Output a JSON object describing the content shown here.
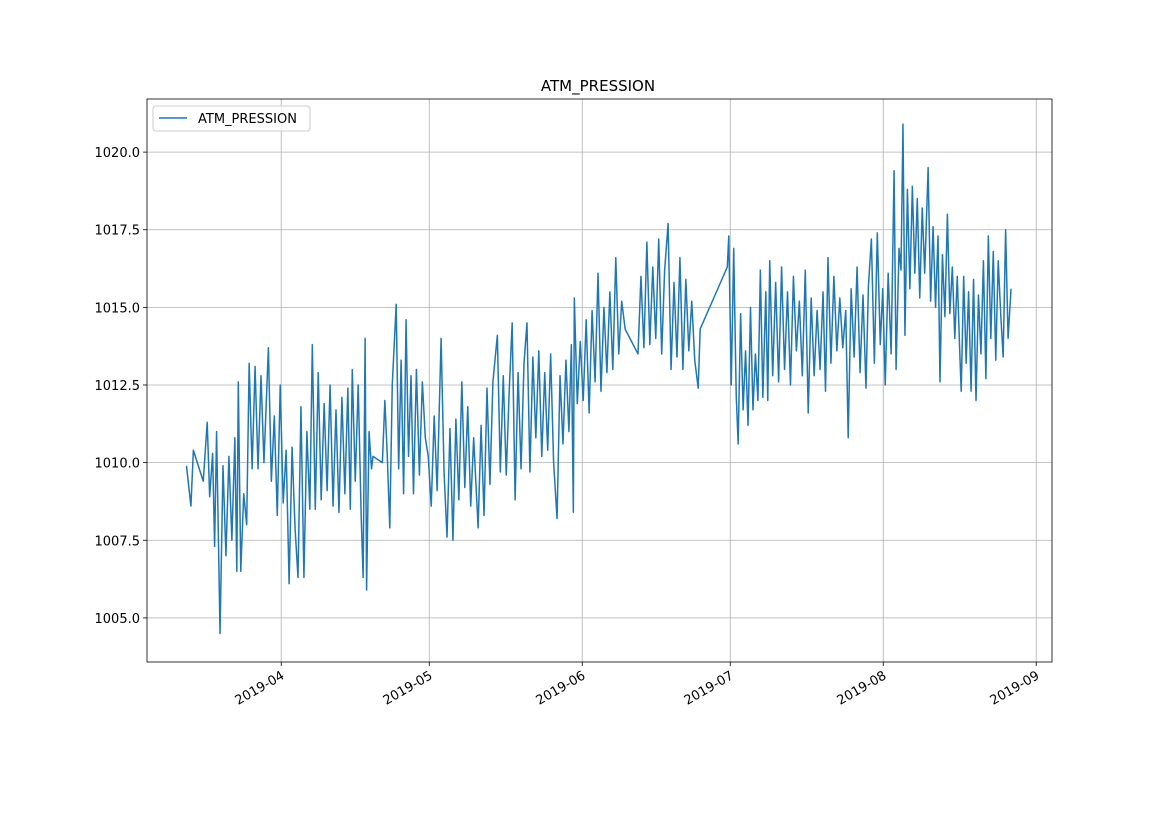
{
  "chart_data": {
    "type": "line",
    "title": "ATM_PRESSION",
    "grid": true,
    "legend": "upper left",
    "xlim": [
      17959.8,
      18143.2
    ],
    "ylim": [
      1003.58,
      1021.71
    ],
    "xticks": [
      {
        "value": 17987,
        "label": "2019-04"
      },
      {
        "value": 18017,
        "label": "2019-05"
      },
      {
        "value": 18048,
        "label": "2019-06"
      },
      {
        "value": 18078,
        "label": "2019-07"
      },
      {
        "value": 18109,
        "label": "2019-08"
      },
      {
        "value": 18140,
        "label": "2019-09"
      }
    ],
    "yticks": [
      {
        "value": 1005,
        "label": "1005.0"
      },
      1007.5,
      {
        "value": 1010,
        "label": "1010.0"
      },
      1012.5,
      {
        "value": 1015,
        "label": "1015.0"
      },
      1017.5,
      {
        "value": 1020,
        "label": "1020.0"
      }
    ],
    "x": [
      17967.8,
      17968.7,
      17969.2,
      17971.2,
      17972.0,
      17972.5,
      17973.1,
      17973.5,
      17973.9,
      17974.6,
      17975.2,
      17975.8,
      17976.4,
      17977.0,
      17977.6,
      17978.0,
      17978.3,
      17978.8,
      17979.4,
      17980.0,
      17980.5,
      17981.1,
      17981.7,
      17982.3,
      17982.9,
      17983.5,
      17984.4,
      17985.0,
      17985.6,
      17986.2,
      17986.8,
      17987.4,
      17988.0,
      17988.6,
      17989.2,
      17989.8,
      17990.4,
      17991.0,
      17991.6,
      17992.2,
      17992.8,
      17993.3,
      17993.9,
      17994.5,
      17995.1,
      17995.7,
      17996.3,
      17996.9,
      17997.5,
      17998.1,
      17998.7,
      17999.3,
      17999.9,
      18000.5,
      18001.0,
      18001.4,
      18002.0,
      18002.6,
      18003.2,
      18003.6,
      18004.0,
      18004.3,
      18004.8,
      18005.3,
      18005.6,
      18007.5,
      18008.0,
      18008.5,
      18009.0,
      18009.5,
      18010.3,
      18010.8,
      18011.3,
      18011.8,
      18012.3,
      18012.8,
      18013.3,
      18013.8,
      18014.4,
      18015.0,
      18015.6,
      18016.2,
      18016.8,
      18017.4,
      18018.0,
      18018.6,
      18019.4,
      18020.0,
      18020.6,
      18021.2,
      18021.8,
      18022.4,
      18023.0,
      18023.6,
      18024.2,
      18024.8,
      18025.4,
      18026.0,
      18026.9,
      18027.5,
      18028.1,
      18028.7,
      18029.3,
      18029.9,
      18030.8,
      18031.4,
      18032.0,
      18032.6,
      18033.2,
      18033.8,
      18034.4,
      18035.0,
      18035.6,
      18036.2,
      18036.8,
      18037.4,
      18038.0,
      18038.6,
      18039.2,
      18039.8,
      18040.4,
      18041.0,
      18041.6,
      18042.2,
      18042.9,
      18043.5,
      18044.1,
      18044.7,
      18045.3,
      18045.8,
      18046.2,
      18046.4,
      18047.0,
      18047.6,
      18048.2,
      18048.8,
      18049.4,
      18050.0,
      18050.6,
      18051.2,
      18051.8,
      18052.4,
      18053.0,
      18053.6,
      18054.2,
      18054.8,
      18055.4,
      18056.0,
      18056.7,
      18059.3,
      18059.9,
      18060.5,
      18061.1,
      18061.7,
      18062.3,
      18062.9,
      18063.5,
      18064.1,
      18064.7,
      18065.4,
      18066.0,
      18066.6,
      18067.2,
      18067.8,
      18068.4,
      18069.0,
      18069.6,
      18070.2,
      18070.8,
      18071.5,
      18071.9,
      18077.4,
      18077.7,
      18078.2,
      18078.7,
      18079.2,
      18079.6,
      18080.1,
      18080.6,
      18081.1,
      18081.6,
      18082.1,
      18082.6,
      18083.1,
      18083.6,
      18084.1,
      18084.6,
      18085.2,
      18085.6,
      18086.0,
      18086.6,
      18087.2,
      18087.8,
      18088.4,
      18089.0,
      18089.6,
      18090.2,
      18090.8,
      18091.4,
      18092.0,
      18092.6,
      18093.2,
      18093.8,
      18094.4,
      18095.0,
      18095.6,
      18096.2,
      18096.8,
      18097.3,
      18097.8,
      18098.4,
      18099.0,
      18099.6,
      18100.2,
      18100.8,
      18101.4,
      18101.9,
      18102.5,
      18103.1,
      18103.7,
      18104.3,
      18104.9,
      18105.5,
      18106.0,
      18106.6,
      18107.2,
      18107.8,
      18108.4,
      18108.9,
      18109.4,
      18110.0,
      18110.6,
      18111.2,
      18111.6,
      18112.2,
      18112.6,
      18113.0,
      18113.4,
      18113.9,
      18114.4,
      18114.9,
      18115.4,
      18115.9,
      18116.4,
      18116.9,
      18117.4,
      18118.1,
      18118.6,
      18119.1,
      18119.6,
      18120.1,
      18120.5,
      18121.0,
      18121.5,
      18122.0,
      18122.5,
      18123.0,
      18123.5,
      18124.0,
      18124.5,
      18124.8,
      18125.3,
      18125.8,
      18126.3,
      18126.8,
      18127.3,
      18127.8,
      18128.3,
      18128.8,
      18129.3,
      18129.8,
      18130.3,
      18130.8,
      18131.3,
      18131.8,
      18132.3,
      18132.8,
      18133.3,
      18133.8,
      18134.3,
      18134.9
    ],
    "series": [
      {
        "name": "ATM_PRESSION",
        "color": "#1f77b4",
        "values": [
          1009.9,
          1008.6,
          1010.4,
          1009.4,
          1011.3,
          1008.9,
          1010.3,
          1007.3,
          1011.0,
          1004.5,
          1009.9,
          1007.0,
          1010.2,
          1007.5,
          1010.8,
          1006.5,
          1012.6,
          1006.5,
          1009.0,
          1008.0,
          1013.2,
          1009.8,
          1013.1,
          1009.8,
          1012.8,
          1010.0,
          1013.7,
          1009.4,
          1011.5,
          1008.3,
          1012.5,
          1008.7,
          1010.4,
          1006.1,
          1010.5,
          1007.9,
          1006.3,
          1011.8,
          1006.3,
          1011.0,
          1008.5,
          1013.8,
          1008.5,
          1012.9,
          1008.8,
          1011.9,
          1009.1,
          1012.5,
          1008.6,
          1011.7,
          1008.4,
          1012.1,
          1009.0,
          1012.4,
          1008.5,
          1013.0,
          1009.4,
          1012.5,
          1008.3,
          1006.3,
          1014.0,
          1005.9,
          1011.0,
          1009.8,
          1010.2,
          1010.0,
          1012.0,
          1010.2,
          1007.9,
          1012.5,
          1015.1,
          1009.8,
          1013.3,
          1009.0,
          1014.6,
          1010.2,
          1012.8,
          1009.0,
          1013.0,
          1009.6,
          1012.6,
          1010.8,
          1010.2,
          1008.6,
          1011.5,
          1009.1,
          1014.0,
          1009.7,
          1007.6,
          1011.1,
          1007.5,
          1011.4,
          1008.8,
          1012.6,
          1009.2,
          1011.8,
          1008.6,
          1010.8,
          1007.9,
          1011.2,
          1008.3,
          1012.4,
          1009.3,
          1012.6,
          1014.1,
          1009.7,
          1012.8,
          1009.6,
          1012.3,
          1014.5,
          1008.8,
          1012.9,
          1009.8,
          1013.2,
          1014.5,
          1009.7,
          1013.4,
          1010.8,
          1013.6,
          1010.2,
          1012.9,
          1010.4,
          1013.5,
          1010.0,
          1008.2,
          1012.8,
          1010.6,
          1013.3,
          1011.0,
          1013.8,
          1008.4,
          1015.3,
          1011.9,
          1013.9,
          1012.0,
          1014.6,
          1011.6,
          1014.9,
          1012.6,
          1016.1,
          1012.3,
          1015.0,
          1012.9,
          1015.5,
          1013.0,
          1016.6,
          1013.5,
          1015.2,
          1014.3,
          1013.5,
          1016.0,
          1013.7,
          1017.1,
          1013.8,
          1016.3,
          1014.0,
          1017.2,
          1013.5,
          1016.2,
          1017.7,
          1013.0,
          1015.8,
          1013.4,
          1016.6,
          1013.0,
          1015.9,
          1013.6,
          1015.2,
          1013.3,
          1012.4,
          1014.3,
          1016.3,
          1017.3,
          1012.5,
          1016.9,
          1012.2,
          1010.6,
          1014.8,
          1011.7,
          1013.6,
          1011.2,
          1015.0,
          1011.7,
          1013.5,
          1012.0,
          1016.2,
          1012.1,
          1015.5,
          1012.0,
          1016.5,
          1012.8,
          1015.8,
          1012.6,
          1016.3,
          1013.0,
          1015.5,
          1012.5,
          1016.0,
          1013.6,
          1015.2,
          1012.8,
          1016.2,
          1011.6,
          1015.3,
          1012.8,
          1014.9,
          1013.0,
          1015.5,
          1012.3,
          1016.6,
          1013.2,
          1016.0,
          1013.6,
          1015.3,
          1013.7,
          1014.9,
          1010.8,
          1015.6,
          1013.4,
          1016.3,
          1012.9,
          1015.4,
          1012.4,
          1015.7,
          1017.2,
          1013.2,
          1017.4,
          1013.8,
          1015.6,
          1012.5,
          1016.1,
          1013.5,
          1019.4,
          1013.0,
          1016.9,
          1016.2,
          1020.9,
          1014.1,
          1018.8,
          1015.6,
          1018.9,
          1016.1,
          1018.5,
          1015.3,
          1018.2,
          1016.1,
          1019.5,
          1015.2,
          1017.6,
          1015.0,
          1017.3,
          1012.6,
          1016.7,
          1014.7,
          1018.0,
          1014.8,
          1016.3,
          1014.0,
          1016.0,
          1013.6,
          1012.3,
          1016.0,
          1013.2,
          1015.5,
          1012.3,
          1015.9,
          1012.0,
          1015.4,
          1013.5,
          1016.5,
          1012.7,
          1017.3,
          1014.0,
          1016.8,
          1013.3,
          1016.5,
          1014.8,
          1013.4,
          1017.5,
          1014.0,
          1015.6
        ]
      }
    ]
  }
}
